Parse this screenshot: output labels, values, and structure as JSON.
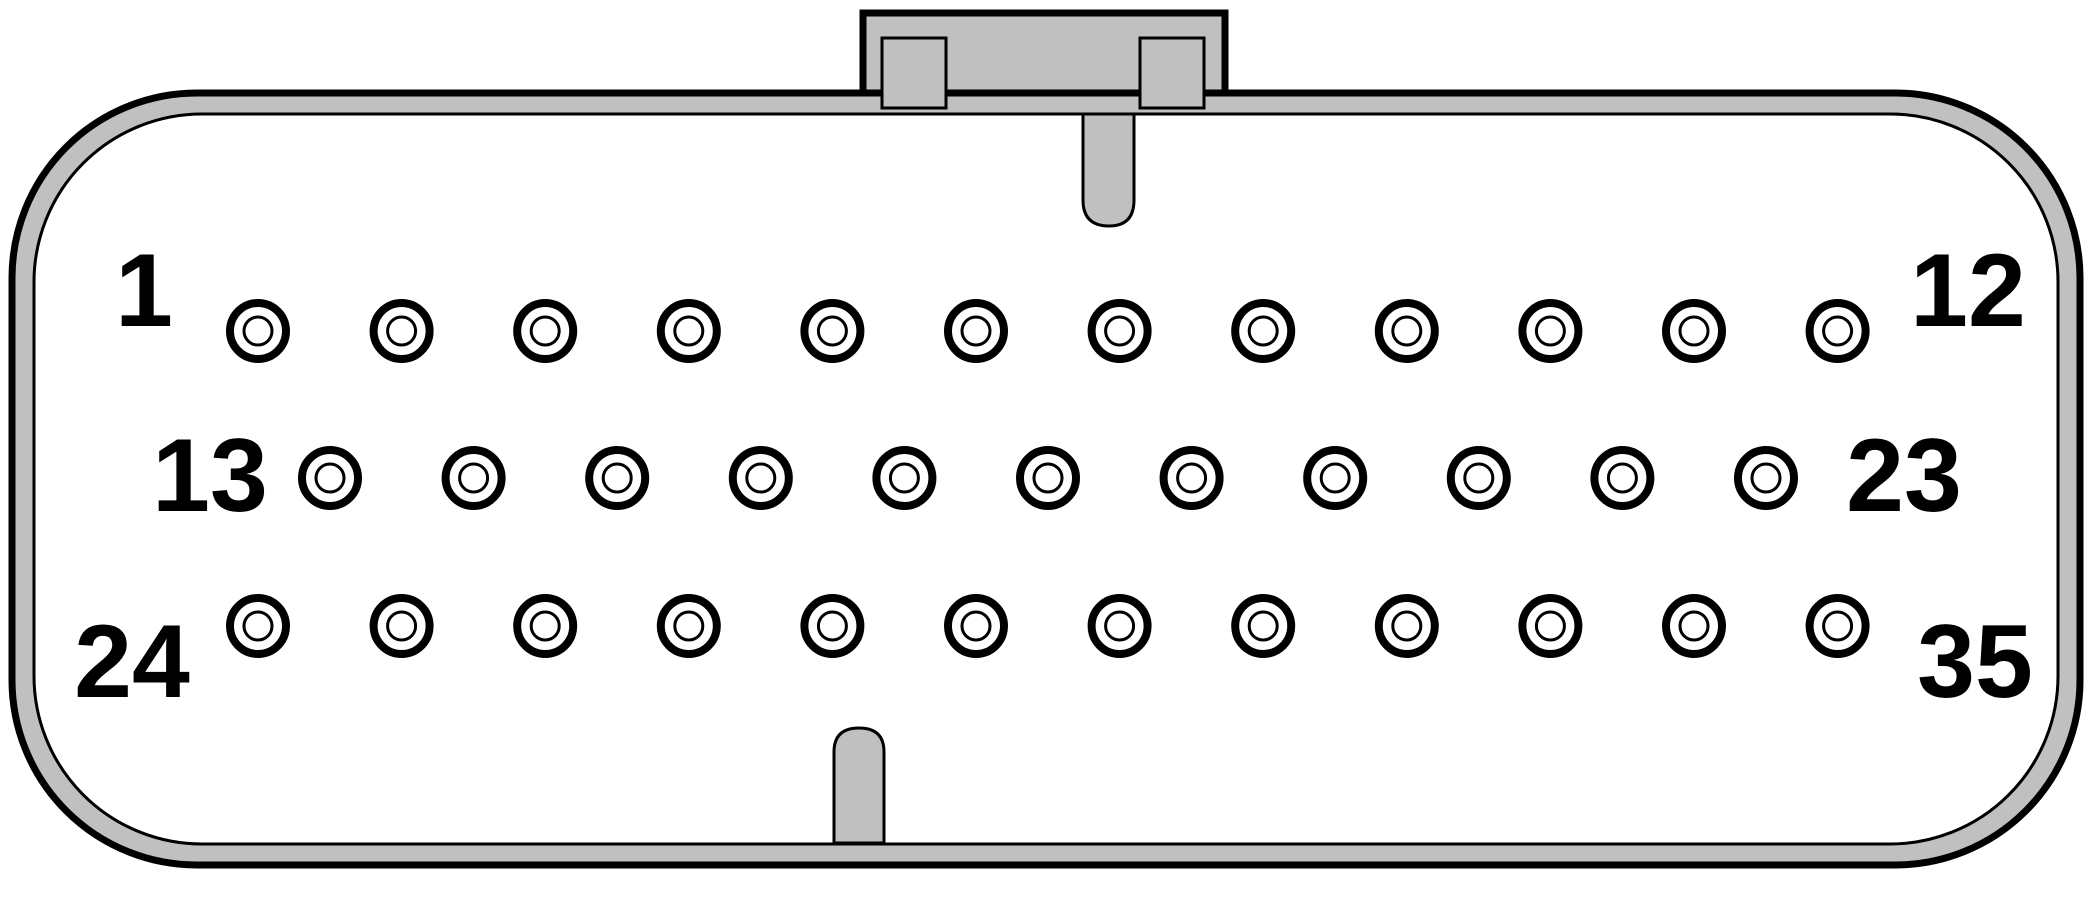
{
  "connector": {
    "pin_count": 35,
    "rows": [
      {
        "pins": [
          1,
          12
        ],
        "count": 12
      },
      {
        "pins": [
          13,
          23
        ],
        "count": 11
      },
      {
        "pins": [
          24,
          35
        ],
        "count": 12
      }
    ]
  },
  "labels": {
    "pin_1": "1",
    "pin_12": "12",
    "pin_13": "13",
    "pin_23": "23",
    "pin_24": "24",
    "pin_35": "35"
  },
  "colors": {
    "housing_fill": "#c0c0c0",
    "outline": "#000000",
    "cavity_fill": "#ffffff",
    "background": "#ffffff"
  }
}
